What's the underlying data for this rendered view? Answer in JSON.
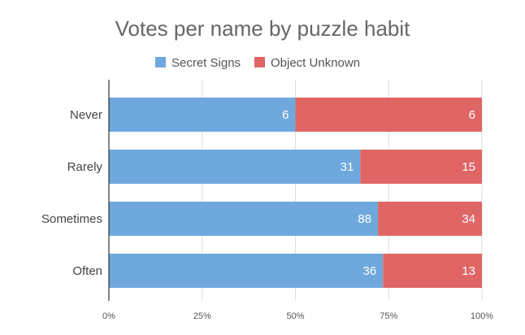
{
  "chart_data": {
    "type": "bar",
    "orientation": "horizontal",
    "stacked": "percent",
    "title": "Votes per name by puzzle habit",
    "categories": [
      "Never",
      "Rarely",
      "Sometimes",
      "Often"
    ],
    "series": [
      {
        "name": "Secret Signs",
        "color": "#6fa8dc",
        "values": [
          6,
          31,
          88,
          36
        ]
      },
      {
        "name": "Object Unknown",
        "color": "#e06666",
        "values": [
          6,
          15,
          34,
          13
        ]
      }
    ],
    "xticks": [
      "0%",
      "25%",
      "50%",
      "75%",
      "100%"
    ],
    "xlim": [
      0,
      100
    ],
    "grid": true,
    "legend_position": "top"
  }
}
